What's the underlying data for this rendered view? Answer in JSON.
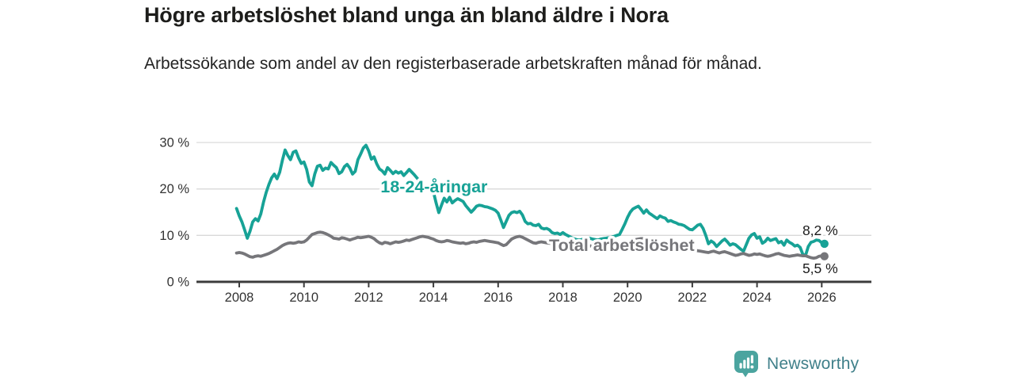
{
  "header": {
    "title": "Högre arbetslöshet bland unga än bland äldre i Nora",
    "subtitle": "Arbetssökande som andel av den registerbaserade arbetskraften månad för månad."
  },
  "brand": {
    "name": "Newsworthy",
    "icon_color": "#4ba49f",
    "text_color": "#40808a"
  },
  "chart_data": {
    "type": "line",
    "title": "Högre arbetslöshet bland unga än bland äldre i Nora",
    "subtitle": "Arbetssökande som andel av den registerbaserade arbetskraften månad för månad.",
    "grid": "horizontal",
    "legend_position": "inline-labels",
    "colors": {
      "youth": "#17a296",
      "total": "#76767a",
      "gridline": "#d9d9d9",
      "axis": "#3c3c3c",
      "tick_text": "#333333",
      "value_label_text": "#1b1b1b",
      "halo": "#ffffff"
    },
    "x_axis": {
      "tick_years": [
        2008,
        2010,
        2012,
        2014,
        2016,
        2018,
        2020,
        2022,
        2024,
        2026
      ],
      "tick_labels": [
        "2008",
        "2010",
        "2012",
        "2014",
        "2016",
        "2018",
        "2020",
        "2022",
        "2024",
        "2026"
      ],
      "range_years": [
        2006.68,
        2027.5
      ]
    },
    "y_axis": {
      "ticks": [
        {
          "value": 0,
          "label": "0 %"
        },
        {
          "value": 10,
          "label": "10 %"
        },
        {
          "value": 20,
          "label": "20 %"
        },
        {
          "value": 30,
          "label": "30 %"
        }
      ],
      "ylim": [
        0,
        31
      ]
    },
    "series": [
      {
        "id": "youth",
        "name": "18-24-åringar",
        "inline_label": {
          "text": "18-24-åringar",
          "year": 2014.02,
          "value": 19.3
        },
        "end_value_label": "8,2 %",
        "start_year": 2007.917,
        "points_per_year": 12,
        "values": [
          15.8,
          14.2,
          12.9,
          11.2,
          9.4,
          10.9,
          12.9,
          13.6,
          13.1,
          14.6,
          17.2,
          19.3,
          21.0,
          22.4,
          23.2,
          22.2,
          23.6,
          26.2,
          28.4,
          27.2,
          26.3,
          27.9,
          28.2,
          26.7,
          25.5,
          25.8,
          24.2,
          21.5,
          20.7,
          23.2,
          24.9,
          25.1,
          24.0,
          24.5,
          24.3,
          25.7,
          25.1,
          24.6,
          23.3,
          23.7,
          24.8,
          25.3,
          24.5,
          23.2,
          23.8,
          26.3,
          27.5,
          28.8,
          29.4,
          28.2,
          26.4,
          26.9,
          25.4,
          24.3,
          23.9,
          23.2,
          24.6,
          24.0,
          23.3,
          23.8,
          23.4,
          23.7,
          22.9,
          23.5,
          24.2,
          23.6,
          23.0,
          22.3,
          21.6,
          20.9,
          20.3,
          19.9,
          19.6,
          19.4,
          17.0,
          14.9,
          16.5,
          18.0,
          17.2,
          18.2,
          17.0,
          17.5,
          17.9,
          17.6,
          17.3,
          16.4,
          15.7,
          15.0,
          15.6,
          16.3,
          16.5,
          16.4,
          16.2,
          16.1,
          15.9,
          15.7,
          15.4,
          14.8,
          13.3,
          11.7,
          13.0,
          14.3,
          14.9,
          15.1,
          14.9,
          15.2,
          14.4,
          13.0,
          12.5,
          12.6,
          12.2,
          12.1,
          12.4,
          11.6,
          11.4,
          11.5,
          11.2,
          10.6,
          10.4,
          10.5,
          10.2,
          10.6,
          10.2,
          9.9,
          9.6,
          9.3,
          9.1,
          9.0,
          9.1,
          9.3,
          9.5,
          9.4,
          9.2,
          9.1,
          9.0,
          9.2,
          9.3,
          9.4,
          9.5,
          9.6,
          9.8,
          10.0,
          10.2,
          11.3,
          12.5,
          13.9,
          15.0,
          15.7,
          16.0,
          16.3,
          15.6,
          14.8,
          15.5,
          14.8,
          14.4,
          14.0,
          13.6,
          14.2,
          13.9,
          13.7,
          13.0,
          13.2,
          12.9,
          12.7,
          12.4,
          12.3,
          12.1,
          11.7,
          11.3,
          11.2,
          11.7,
          12.2,
          12.4,
          11.5,
          10.0,
          8.2,
          8.8,
          8.4,
          7.6,
          8.2,
          8.8,
          9.2,
          8.6,
          7.9,
          8.2,
          8.0,
          7.5,
          7.0,
          6.6,
          8.0,
          9.4,
          10.1,
          10.4,
          9.4,
          9.7,
          8.3,
          8.7,
          9.4,
          8.9,
          9.1,
          9.3,
          8.4,
          8.7,
          7.9,
          9.0,
          8.5,
          8.2,
          7.7,
          7.9,
          7.4,
          5.9,
          5.7,
          7.6,
          8.5,
          8.7,
          9.0,
          8.9,
          8.4,
          8.2
        ]
      },
      {
        "id": "total",
        "name": "Total arbetslöshet",
        "inline_label": {
          "text": "Total arbetslöshet",
          "year": 2019.82,
          "value": 6.65
        },
        "end_value_label": "5,5 %",
        "start_year": 2007.917,
        "points_per_year": 12,
        "values": [
          6.2,
          6.3,
          6.2,
          6.0,
          5.7,
          5.4,
          5.3,
          5.5,
          5.6,
          5.5,
          5.7,
          5.9,
          6.1,
          6.4,
          6.7,
          7.0,
          7.4,
          7.8,
          8.1,
          8.3,
          8.4,
          8.3,
          8.4,
          8.6,
          8.5,
          8.6,
          9.0,
          9.6,
          10.2,
          10.4,
          10.6,
          10.7,
          10.6,
          10.4,
          10.1,
          9.8,
          9.4,
          9.3,
          9.2,
          9.5,
          9.4,
          9.2,
          9.0,
          9.2,
          9.4,
          9.6,
          9.5,
          9.6,
          9.7,
          9.8,
          9.6,
          9.3,
          8.8,
          8.4,
          8.2,
          8.5,
          8.4,
          8.2,
          8.4,
          8.6,
          8.5,
          8.6,
          8.8,
          9.0,
          8.9,
          9.1,
          9.3,
          9.5,
          9.7,
          9.8,
          9.7,
          9.6,
          9.4,
          9.2,
          8.9,
          8.7,
          8.6,
          8.7,
          8.9,
          8.8,
          8.6,
          8.5,
          8.4,
          8.3,
          8.4,
          8.2,
          8.3,
          8.5,
          8.6,
          8.5,
          8.7,
          8.8,
          8.9,
          8.8,
          8.7,
          8.6,
          8.5,
          8.4,
          8.1,
          7.8,
          8.0,
          8.6,
          9.2,
          9.5,
          9.7,
          9.8,
          9.6,
          9.3,
          9.0,
          8.7,
          8.4,
          8.3,
          8.5,
          8.6,
          8.5,
          8.4,
          8.3,
          8.2,
          8.1,
          8.0,
          7.9,
          7.9,
          7.8,
          7.7,
          7.6,
          7.5,
          7.4,
          7.4,
          7.5,
          7.6,
          7.7,
          7.7,
          7.8,
          7.8,
          7.9,
          7.9,
          8.0,
          8.0,
          8.1,
          8.1,
          8.2,
          8.2,
          8.3,
          8.3,
          8.4,
          8.5,
          8.7,
          8.9,
          9.1,
          9.2,
          9.3,
          9.3,
          9.2,
          9.1,
          9.0,
          8.9,
          8.7,
          8.6,
          8.4,
          8.2,
          8.0,
          7.9,
          7.7,
          7.6,
          7.5,
          7.3,
          7.2,
          7.1,
          7.0,
          6.9,
          6.8,
          6.7,
          6.6,
          6.5,
          6.4,
          6.3,
          6.5,
          6.6,
          6.4,
          6.2,
          6.4,
          6.5,
          6.3,
          6.1,
          5.9,
          5.7,
          5.8,
          6.0,
          6.1,
          5.9,
          5.7,
          5.8,
          6.0,
          5.9,
          6.0,
          5.8,
          5.6,
          5.5,
          5.6,
          5.8,
          6.0,
          6.1,
          5.9,
          5.7,
          5.6,
          5.5,
          5.6,
          5.7,
          5.8,
          5.7,
          5.6,
          5.6,
          5.4,
          5.2,
          5.1,
          5.2,
          5.5,
          5.6,
          5.5
        ]
      }
    ]
  }
}
